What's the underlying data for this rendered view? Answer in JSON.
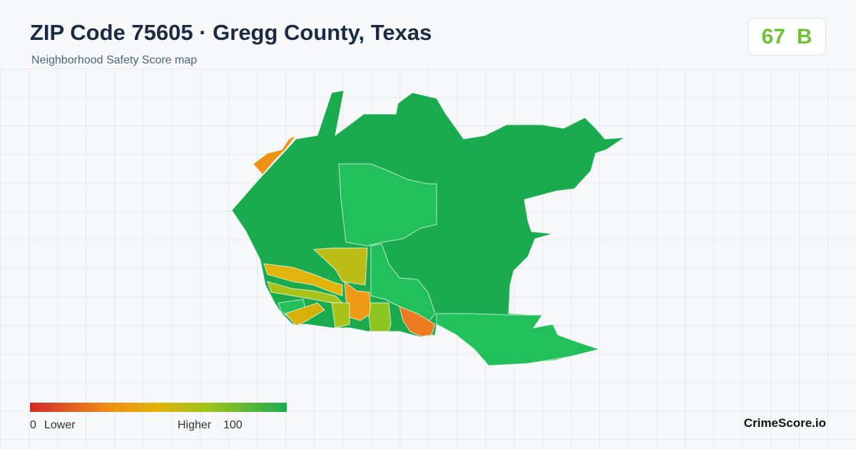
{
  "header": {
    "title": "ZIP Code 75605 · Gregg County, Texas",
    "subtitle": "Neighborhood Safety Score map"
  },
  "score": {
    "value": 67,
    "grade": "B"
  },
  "legend": {
    "min": 0,
    "min_label": "Lower",
    "max_label": "Higher",
    "max": 100
  },
  "brand": "CrimeScore.io"
}
